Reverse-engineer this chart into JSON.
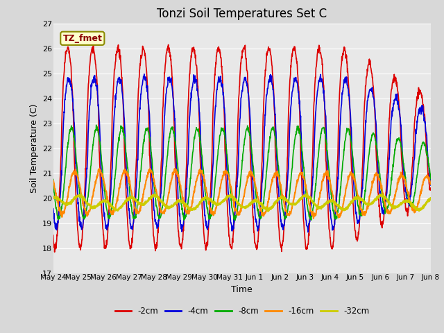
{
  "title": "Tonzi Soil Temperatures Set C",
  "xlabel": "Time",
  "ylabel": "Soil Temperature (C)",
  "ylim": [
    17.0,
    27.0
  ],
  "yticks": [
    17.0,
    18.0,
    19.0,
    20.0,
    21.0,
    22.0,
    23.0,
    24.0,
    25.0,
    26.0,
    27.0
  ],
  "xtick_labels": [
    "May 24",
    "May 25",
    "May 26",
    "May 27",
    "May 28",
    "May 29",
    "May 30",
    "May 31",
    "Jun 1",
    "Jun 2",
    "Jun 3",
    "Jun 4",
    "Jun 5",
    "Jun 6",
    "Jun 7",
    "Jun 8"
  ],
  "annotation_text": "TZ_fmet",
  "annotation_color": "#8B0000",
  "annotation_bg": "#FFFFCC",
  "annotation_border": "#8B8B00",
  "series": [
    {
      "label": "-2cm",
      "color": "#DD0000",
      "lw": 1.2
    },
    {
      "label": "-4cm",
      "color": "#0000DD",
      "lw": 1.2
    },
    {
      "label": "-8cm",
      "color": "#00AA00",
      "lw": 1.2
    },
    {
      "label": "-16cm",
      "color": "#FF8800",
      "lw": 1.5
    },
    {
      "label": "-32cm",
      "color": "#CCCC00",
      "lw": 2.0
    }
  ],
  "bg_color": "#E8E8E8",
  "grid_color": "#FFFFFF",
  "title_fontsize": 12,
  "fig_width": 6.4,
  "fig_height": 4.8,
  "dpi": 100
}
